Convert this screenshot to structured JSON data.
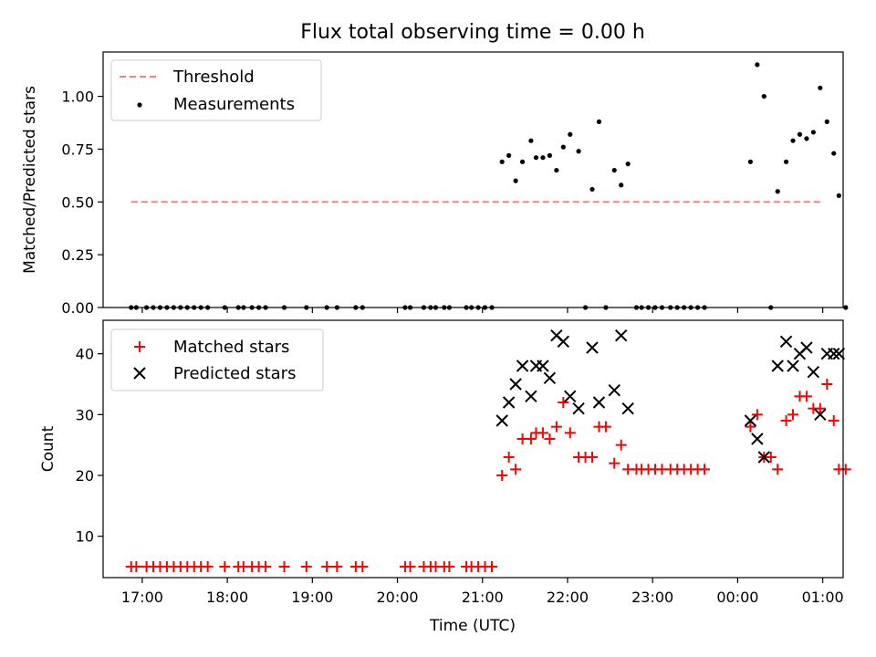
{
  "chart_data": [
    {
      "type": "scatter",
      "title": "Flux total observing time = 0.00 h",
      "xlabel": "",
      "ylabel": "Matched/Predicted stars",
      "x_unit": "hours_since_17:00_UTC_extended_past_midnight",
      "xlim": [
        -0.46,
        8.24
      ],
      "ylim": [
        0.0,
        1.21
      ],
      "yticks": [
        0.0,
        0.25,
        0.5,
        0.75,
        1.0
      ],
      "ytick_labels": [
        "0.00",
        "0.25",
        "0.50",
        "0.75",
        "1.00"
      ],
      "legend": {
        "placement": "upper-left",
        "entries": [
          "Threshold",
          "Measurements"
        ]
      },
      "series": [
        {
          "name": "Threshold",
          "kind": "dashed-line",
          "color": "#ff7f7f",
          "x": [
            -0.13,
            7.97
          ],
          "y": [
            0.5,
            0.5
          ]
        },
        {
          "name": "Measurements",
          "kind": "dot",
          "color": "#000000",
          "points": [
            [
              -0.13,
              0
            ],
            [
              -0.07,
              0
            ],
            [
              0.05,
              0
            ],
            [
              0.13,
              0
            ],
            [
              0.21,
              0
            ],
            [
              0.29,
              0
            ],
            [
              0.37,
              0
            ],
            [
              0.45,
              0
            ],
            [
              0.53,
              0
            ],
            [
              0.61,
              0
            ],
            [
              0.69,
              0
            ],
            [
              0.77,
              0
            ],
            [
              0.97,
              0
            ],
            [
              1.13,
              0
            ],
            [
              1.19,
              0
            ],
            [
              1.29,
              0
            ],
            [
              1.37,
              0
            ],
            [
              1.45,
              0
            ],
            [
              1.67,
              0
            ],
            [
              1.93,
              0
            ],
            [
              2.17,
              0
            ],
            [
              2.29,
              0
            ],
            [
              2.51,
              0
            ],
            [
              2.59,
              0
            ],
            [
              3.09,
              0
            ],
            [
              3.15,
              0
            ],
            [
              3.31,
              0
            ],
            [
              3.39,
              0
            ],
            [
              3.45,
              0
            ],
            [
              3.55,
              0
            ],
            [
              3.61,
              0
            ],
            [
              3.81,
              0
            ],
            [
              3.87,
              0
            ],
            [
              3.95,
              0
            ],
            [
              4.03,
              0
            ],
            [
              4.11,
              0
            ],
            [
              4.23,
              0.69
            ],
            [
              4.31,
              0.72
            ],
            [
              4.39,
              0.6
            ],
            [
              4.47,
              0.69
            ],
            [
              4.57,
              0.79
            ],
            [
              4.63,
              0.71
            ],
            [
              4.71,
              0.71
            ],
            [
              4.79,
              0.72
            ],
            [
              4.87,
              0.65
            ],
            [
              4.95,
              0.76
            ],
            [
              5.03,
              0.82
            ],
            [
              5.13,
              0.74
            ],
            [
              5.21,
              0
            ],
            [
              5.29,
              0.56
            ],
            [
              5.37,
              0.88
            ],
            [
              5.45,
              0
            ],
            [
              5.55,
              0.65
            ],
            [
              5.63,
              0.58
            ],
            [
              5.71,
              0.68
            ],
            [
              5.81,
              0
            ],
            [
              5.87,
              0
            ],
            [
              5.95,
              0
            ],
            [
              6.03,
              0
            ],
            [
              6.11,
              0
            ],
            [
              6.21,
              0
            ],
            [
              6.29,
              0
            ],
            [
              6.37,
              0
            ],
            [
              6.45,
              0
            ],
            [
              6.53,
              0
            ],
            [
              6.61,
              0
            ],
            [
              7.15,
              0.69
            ],
            [
              7.23,
              1.15
            ],
            [
              7.31,
              1.0
            ],
            [
              7.39,
              0
            ],
            [
              7.47,
              0.55
            ],
            [
              7.57,
              0.69
            ],
            [
              7.65,
              0.79
            ],
            [
              7.73,
              0.82
            ],
            [
              7.81,
              0.8
            ],
            [
              7.89,
              0.83
            ],
            [
              7.97,
              1.04
            ],
            [
              8.05,
              0.88
            ],
            [
              8.13,
              0.73
            ],
            [
              8.19,
              0.53
            ],
            [
              8.27,
              0
            ]
          ]
        }
      ]
    },
    {
      "type": "scatter",
      "title": "",
      "xlabel": "Time (UTC)",
      "ylabel": "Count",
      "x_unit": "hours_since_17:00_UTC_extended_past_midnight",
      "xlim": [
        -0.46,
        8.24
      ],
      "ylim": [
        3.2,
        45.5
      ],
      "xticks": [
        0,
        1,
        2,
        3,
        4,
        5,
        6,
        7,
        8
      ],
      "xtick_labels": [
        "17:00",
        "18:00",
        "19:00",
        "20:00",
        "21:00",
        "22:00",
        "23:00",
        "00:00",
        "01:00"
      ],
      "yticks": [
        10,
        20,
        30,
        40
      ],
      "ytick_labels": [
        "10",
        "20",
        "30",
        "40"
      ],
      "legend": {
        "placement": "upper-left",
        "entries": [
          "Matched stars",
          "Predicted stars"
        ]
      },
      "series": [
        {
          "name": "Matched stars",
          "kind": "plus",
          "color": "#ff0000",
          "points": [
            [
              -0.13,
              5
            ],
            [
              -0.07,
              5
            ],
            [
              0.05,
              5
            ],
            [
              0.13,
              5
            ],
            [
              0.21,
              5
            ],
            [
              0.29,
              5
            ],
            [
              0.37,
              5
            ],
            [
              0.45,
              5
            ],
            [
              0.53,
              5
            ],
            [
              0.61,
              5
            ],
            [
              0.69,
              5
            ],
            [
              0.77,
              5
            ],
            [
              0.97,
              5
            ],
            [
              1.13,
              5
            ],
            [
              1.19,
              5
            ],
            [
              1.29,
              5
            ],
            [
              1.37,
              5
            ],
            [
              1.45,
              5
            ],
            [
              1.67,
              5
            ],
            [
              1.93,
              5
            ],
            [
              2.17,
              5
            ],
            [
              2.29,
              5
            ],
            [
              2.51,
              5
            ],
            [
              2.59,
              5
            ],
            [
              3.09,
              5
            ],
            [
              3.15,
              5
            ],
            [
              3.31,
              5
            ],
            [
              3.39,
              5
            ],
            [
              3.45,
              5
            ],
            [
              3.55,
              5
            ],
            [
              3.61,
              5
            ],
            [
              3.81,
              5
            ],
            [
              3.87,
              5
            ],
            [
              3.95,
              5
            ],
            [
              4.03,
              5
            ],
            [
              4.11,
              5
            ],
            [
              4.23,
              20
            ],
            [
              4.31,
              23
            ],
            [
              4.39,
              21
            ],
            [
              4.47,
              26
            ],
            [
              4.57,
              26
            ],
            [
              4.63,
              27
            ],
            [
              4.71,
              27
            ],
            [
              4.79,
              26
            ],
            [
              4.87,
              28
            ],
            [
              4.95,
              32
            ],
            [
              5.03,
              27
            ],
            [
              5.13,
              23
            ],
            [
              5.21,
              23
            ],
            [
              5.29,
              23
            ],
            [
              5.37,
              28
            ],
            [
              5.45,
              28
            ],
            [
              5.55,
              22
            ],
            [
              5.63,
              25
            ],
            [
              5.71,
              21
            ],
            [
              5.81,
              21
            ],
            [
              5.87,
              21
            ],
            [
              5.95,
              21
            ],
            [
              6.03,
              21
            ],
            [
              6.11,
              21
            ],
            [
              6.21,
              21
            ],
            [
              6.29,
              21
            ],
            [
              6.37,
              21
            ],
            [
              6.45,
              21
            ],
            [
              6.53,
              21
            ],
            [
              6.61,
              21
            ],
            [
              7.15,
              28
            ],
            [
              7.23,
              30
            ],
            [
              7.31,
              23
            ],
            [
              7.39,
              23
            ],
            [
              7.47,
              21
            ],
            [
              7.57,
              29
            ],
            [
              7.65,
              30
            ],
            [
              7.73,
              33
            ],
            [
              7.81,
              33
            ],
            [
              7.89,
              31
            ],
            [
              7.97,
              31
            ],
            [
              8.05,
              35
            ],
            [
              8.13,
              29
            ],
            [
              8.19,
              21
            ],
            [
              8.27,
              21
            ]
          ]
        },
        {
          "name": "Predicted stars",
          "kind": "x",
          "color": "#000000",
          "points": [
            [
              4.23,
              29
            ],
            [
              4.31,
              32
            ],
            [
              4.39,
              35
            ],
            [
              4.47,
              38
            ],
            [
              4.57,
              33
            ],
            [
              4.63,
              38
            ],
            [
              4.71,
              38
            ],
            [
              4.79,
              36
            ],
            [
              4.87,
              43
            ],
            [
              4.95,
              42
            ],
            [
              5.03,
              33
            ],
            [
              5.13,
              31
            ],
            [
              5.29,
              41
            ],
            [
              5.37,
              32
            ],
            [
              5.55,
              34
            ],
            [
              5.63,
              43
            ],
            [
              5.71,
              31
            ],
            [
              7.15,
              29
            ],
            [
              7.23,
              26
            ],
            [
              7.31,
              23
            ],
            [
              7.47,
              38
            ],
            [
              7.57,
              42
            ],
            [
              7.65,
              38
            ],
            [
              7.73,
              40
            ],
            [
              7.81,
              41
            ],
            [
              7.89,
              37
            ],
            [
              7.97,
              30
            ],
            [
              8.05,
              40
            ],
            [
              8.13,
              40
            ],
            [
              8.19,
              40
            ]
          ]
        }
      ]
    }
  ]
}
